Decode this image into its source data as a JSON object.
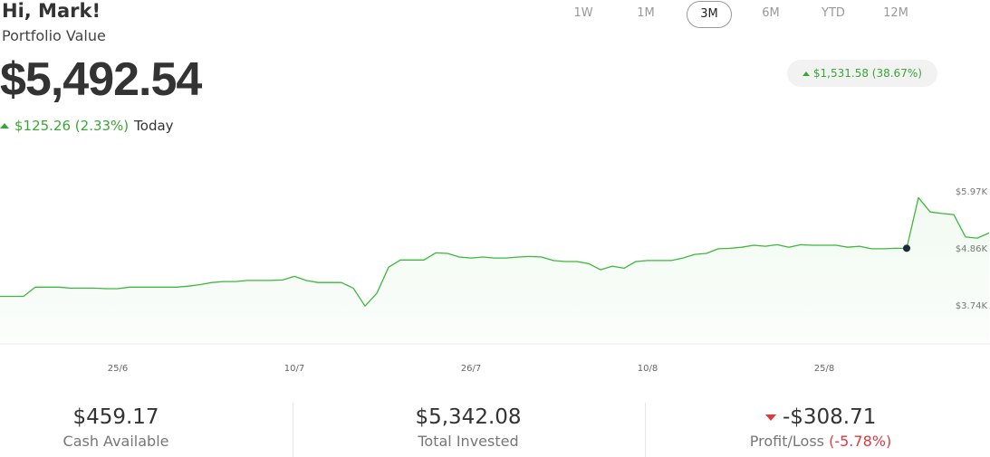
{
  "header": {
    "greeting": "Hi, Mark!",
    "subtitle": "Portfolio Value",
    "value": "$5,492.54",
    "today_change": "$125.26 (2.33%)",
    "today_label": "Today"
  },
  "ranges": {
    "options": [
      "1W",
      "1M",
      "3M",
      "6M",
      "YTD",
      "12M"
    ],
    "selected_index": 2
  },
  "period_change": "$1,531.58 (38.67%)",
  "chart_data": {
    "type": "line",
    "color": "#3cb83c",
    "categories": [
      null,
      null,
      null,
      null,
      null,
      null,
      null,
      null,
      null,
      null,
      "25/6",
      null,
      null,
      null,
      null,
      null,
      null,
      null,
      null,
      null,
      null,
      null,
      null,
      null,
      null,
      "10/7",
      null,
      null,
      null,
      null,
      null,
      null,
      null,
      null,
      null,
      null,
      null,
      null,
      null,
      null,
      "26/7",
      null,
      null,
      null,
      null,
      null,
      null,
      null,
      null,
      null,
      null,
      null,
      null,
      null,
      null,
      "10/8",
      null,
      null,
      null,
      null,
      null,
      null,
      null,
      null,
      null,
      null,
      null,
      null,
      null,
      null,
      "25/8",
      null,
      null,
      null,
      null,
      null,
      null,
      null,
      null,
      null,
      null,
      null,
      null,
      null,
      null
    ],
    "values": [
      3930,
      3930,
      3930,
      4110,
      4110,
      4110,
      4090,
      4090,
      4090,
      4080,
      4080,
      4110,
      4110,
      4110,
      4110,
      4110,
      4130,
      4160,
      4200,
      4220,
      4220,
      4240,
      4240,
      4240,
      4250,
      4320,
      4240,
      4200,
      4200,
      4200,
      4090,
      3740,
      3990,
      4500,
      4640,
      4640,
      4640,
      4780,
      4770,
      4700,
      4680,
      4700,
      4680,
      4680,
      4700,
      4710,
      4700,
      4630,
      4610,
      4610,
      4570,
      4450,
      4520,
      4480,
      4610,
      4630,
      4630,
      4630,
      4680,
      4750,
      4770,
      4860,
      4870,
      4890,
      4930,
      4910,
      4940,
      4890,
      4940,
      4930,
      4930,
      4930,
      4890,
      4910,
      4860,
      4860,
      4870,
      4870,
      5860,
      5580,
      5550,
      5530,
      5090,
      5070,
      5170
    ],
    "highlight_index": 77,
    "ylim": [
      3000,
      6540
    ],
    "yticks": [
      {
        "value": 3740,
        "label": "$3.74K"
      },
      {
        "value": 4860,
        "label": "$4.86K"
      },
      {
        "value": 5970,
        "label": "$5.97K"
      }
    ]
  },
  "stats": [
    {
      "value": "$459.17",
      "label": "Cash Available"
    },
    {
      "value": "$5,342.08",
      "label": "Total Invested"
    },
    {
      "value": "-$308.71",
      "label": "Profit/Loss",
      "percent": "(-5.78%)"
    }
  ]
}
